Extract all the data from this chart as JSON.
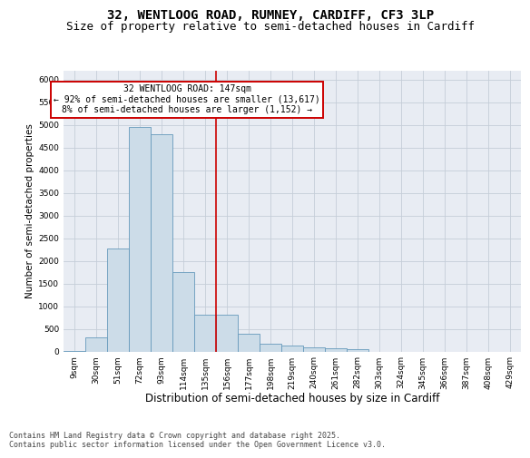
{
  "title1": "32, WENTLOOG ROAD, RUMNEY, CARDIFF, CF3 3LP",
  "title2": "Size of property relative to semi-detached houses in Cardiff",
  "xlabel": "Distribution of semi-detached houses by size in Cardiff",
  "ylabel": "Number of semi-detached properties",
  "categories": [
    "9sqm",
    "30sqm",
    "51sqm",
    "72sqm",
    "93sqm",
    "114sqm",
    "135sqm",
    "156sqm",
    "177sqm",
    "198sqm",
    "219sqm",
    "240sqm",
    "261sqm",
    "282sqm",
    "303sqm",
    "324sqm",
    "345sqm",
    "366sqm",
    "387sqm",
    "408sqm",
    "429sqm"
  ],
  "values": [
    20,
    310,
    2280,
    4950,
    4800,
    1750,
    810,
    810,
    390,
    170,
    125,
    95,
    65,
    50,
    0,
    0,
    0,
    0,
    0,
    0,
    0
  ],
  "bar_color": "#ccdce8",
  "bar_edge_color": "#6699bb",
  "vline_color": "#cc0000",
  "vline_x_index": 6.5,
  "annotation_text": "32 WENTLOOG ROAD: 147sqm\n← 92% of semi-detached houses are smaller (13,617)\n8% of semi-detached houses are larger (1,152) →",
  "annotation_box_color": "#cc0000",
  "ylim": [
    0,
    6200
  ],
  "yticks": [
    0,
    500,
    1000,
    1500,
    2000,
    2500,
    3000,
    3500,
    4000,
    4500,
    5000,
    5500,
    6000
  ],
  "grid_color": "#c5cdd8",
  "bg_color": "#e8ecf3",
  "footnote": "Contains HM Land Registry data © Crown copyright and database right 2025.\nContains public sector information licensed under the Open Government Licence v3.0.",
  "title1_fontsize": 10,
  "title2_fontsize": 9,
  "xlabel_fontsize": 8.5,
  "ylabel_fontsize": 7.5,
  "tick_fontsize": 6.5,
  "footnote_fontsize": 6,
  "ann_fontsize": 7
}
